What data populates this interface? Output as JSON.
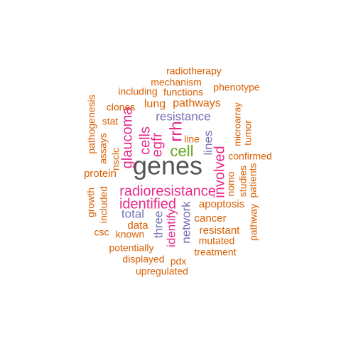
{
  "colors": {
    "orange": "#d95f02",
    "magenta": "#e7298a",
    "purple": "#7570b3",
    "green": "#66a61e",
    "gray": "#555555"
  },
  "words": [
    {
      "text": "genes",
      "color": "gray"
    },
    {
      "text": "radioresistance",
      "color": "magenta"
    },
    {
      "text": "glaucoma",
      "color": "magenta"
    },
    {
      "text": "identified",
      "color": "magenta"
    },
    {
      "text": "rrh",
      "color": "magenta"
    },
    {
      "text": "cells",
      "color": "magenta"
    },
    {
      "text": "egfr",
      "color": "magenta"
    },
    {
      "text": "involved",
      "color": "magenta"
    },
    {
      "text": "cell",
      "color": "green"
    },
    {
      "text": "resistance",
      "color": "purple"
    },
    {
      "text": "lines",
      "color": "purple"
    },
    {
      "text": "total",
      "color": "purple"
    },
    {
      "text": "three",
      "color": "purple"
    },
    {
      "text": "network",
      "color": "purple"
    },
    {
      "text": "identify",
      "color": "magenta"
    },
    {
      "text": "pathways",
      "color": "orange"
    },
    {
      "text": "lung",
      "color": "orange"
    },
    {
      "text": "apoptosis",
      "color": "orange"
    },
    {
      "text": "cancer",
      "color": "orange"
    },
    {
      "text": "resistant",
      "color": "orange"
    },
    {
      "text": "protein",
      "color": "orange"
    },
    {
      "text": "data",
      "color": "orange"
    },
    {
      "text": "nomo",
      "color": "orange"
    },
    {
      "text": "radiotherapy",
      "color": "orange"
    },
    {
      "text": "mechanism",
      "color": "orange"
    },
    {
      "text": "including",
      "color": "orange"
    },
    {
      "text": "functions",
      "color": "orange"
    },
    {
      "text": "phenotype",
      "color": "orange"
    },
    {
      "text": "clones",
      "color": "orange"
    },
    {
      "text": "stat",
      "color": "orange"
    },
    {
      "text": "pathogenesis",
      "color": "orange"
    },
    {
      "text": "assays",
      "color": "orange"
    },
    {
      "text": "nsclc",
      "color": "orange"
    },
    {
      "text": "microarray",
      "color": "orange"
    },
    {
      "text": "tumor",
      "color": "orange"
    },
    {
      "text": "line",
      "color": "orange"
    },
    {
      "text": "confirmed",
      "color": "orange"
    },
    {
      "text": "growth",
      "color": "orange"
    },
    {
      "text": "included",
      "color": "orange"
    },
    {
      "text": "studies",
      "color": "orange"
    },
    {
      "text": "patients",
      "color": "orange"
    },
    {
      "text": "pathway",
      "color": "orange"
    },
    {
      "text": "csc",
      "color": "orange"
    },
    {
      "text": "known",
      "color": "orange"
    },
    {
      "text": "mutated",
      "color": "orange"
    },
    {
      "text": "potentially",
      "color": "orange"
    },
    {
      "text": "treatment",
      "color": "orange"
    },
    {
      "text": "displayed",
      "color": "orange"
    },
    {
      "text": "pdx",
      "color": "orange"
    },
    {
      "text": "upregulated",
      "color": "orange"
    }
  ]
}
